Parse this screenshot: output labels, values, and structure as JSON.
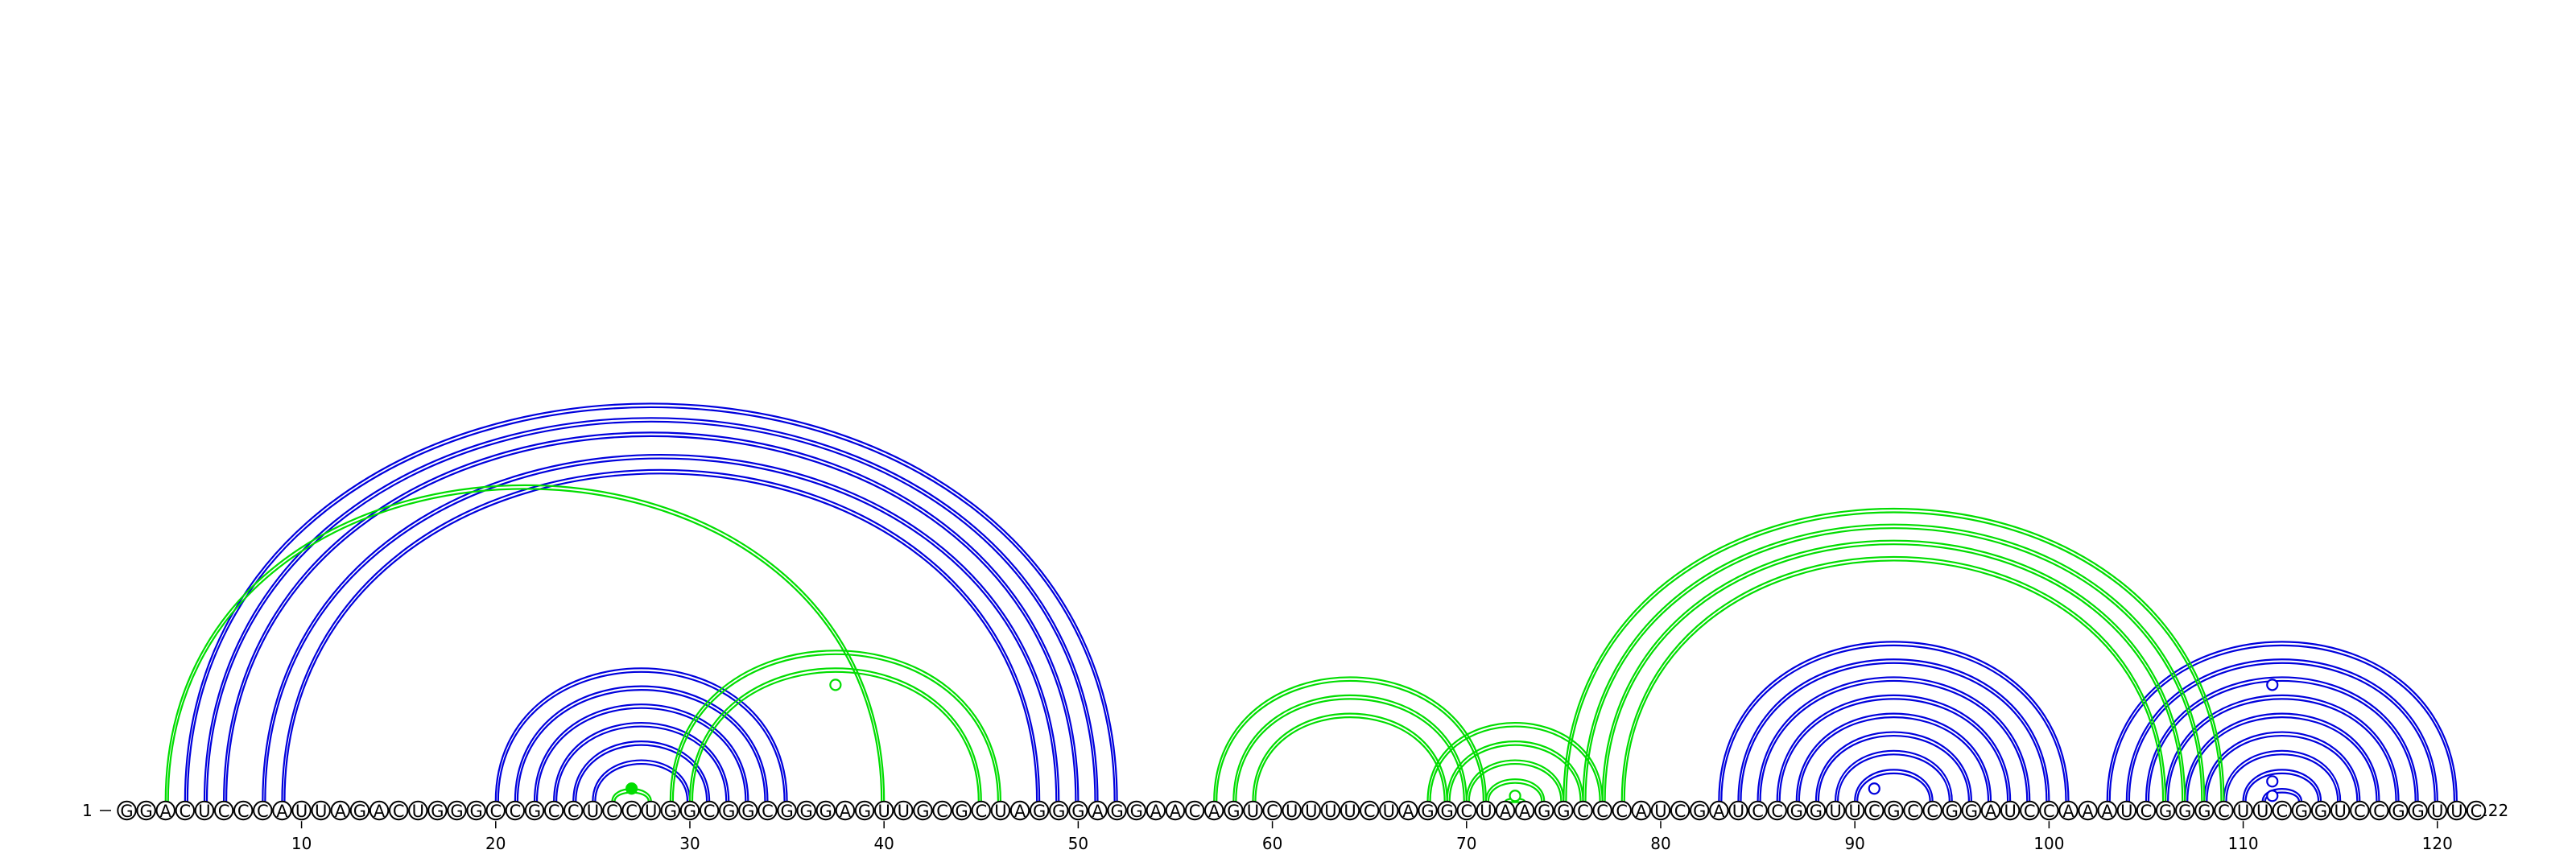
{
  "chart_data": {
    "type": "arc-diagram",
    "sequence": "GGACUCCCAUUAGACUGGGCCGCCUCCUGGCGGCGGGAGUUGCGCUAGGGAGGAACAGUCUUUUCUAGGCUAAGGCCCAUCGAUCCGGUUCGCCGGAUCCAAAUCGGGCUUCGGUCCGGUUC",
    "start_label": "1",
    "end_label": "122",
    "ticks": [
      10,
      20,
      30,
      40,
      50,
      60,
      70,
      80,
      90,
      100,
      110,
      120
    ],
    "colors": {
      "blue": "#0000dd",
      "green": "#00dd00"
    },
    "blue_arcs": [
      [
        4,
        52
      ],
      [
        5,
        51
      ],
      [
        6,
        50
      ],
      [
        8,
        49
      ],
      [
        9,
        48
      ],
      [
        20,
        35
      ],
      [
        21,
        34
      ],
      [
        22,
        33
      ],
      [
        23,
        32
      ],
      [
        24,
        31
      ],
      [
        25,
        30
      ],
      [
        83,
        101
      ],
      [
        84,
        100
      ],
      [
        85,
        99
      ],
      [
        86,
        98
      ],
      [
        87,
        97
      ],
      [
        88,
        96
      ],
      [
        89,
        95
      ],
      [
        90,
        94
      ],
      [
        103,
        121
      ],
      [
        104,
        120
      ],
      [
        105,
        119
      ],
      [
        106,
        118
      ],
      [
        107,
        117
      ],
      [
        108,
        116
      ],
      [
        109,
        115
      ],
      [
        110,
        114
      ],
      [
        111,
        113
      ]
    ],
    "green_arcs": [
      [
        3,
        40
      ],
      [
        26,
        28
      ],
      [
        29,
        46
      ],
      [
        30,
        45
      ],
      [
        57,
        71
      ],
      [
        58,
        70
      ],
      [
        59,
        69
      ],
      [
        68,
        77
      ],
      [
        69,
        76
      ],
      [
        70,
        75
      ],
      [
        71,
        74
      ],
      [
        72,
        73
      ],
      [
        75,
        109
      ],
      [
        76,
        108
      ],
      [
        77,
        107
      ],
      [
        78,
        106
      ]
    ],
    "markers": [
      {
        "color": "green",
        "filled": true,
        "i": 26,
        "j": 28
      },
      {
        "color": "green",
        "filled": false,
        "i": 29,
        "j": 46
      },
      {
        "color": "green",
        "filled": false,
        "i": 72,
        "j": 73
      },
      {
        "color": "blue",
        "filled": false,
        "i": 90,
        "j": 92
      },
      {
        "color": "blue",
        "filled": false,
        "i": 110,
        "j": 113
      },
      {
        "color": "blue",
        "filled": false,
        "i": 111,
        "j": 112
      },
      {
        "color": "blue",
        "filled": false,
        "i": 103,
        "j": 120
      }
    ]
  }
}
